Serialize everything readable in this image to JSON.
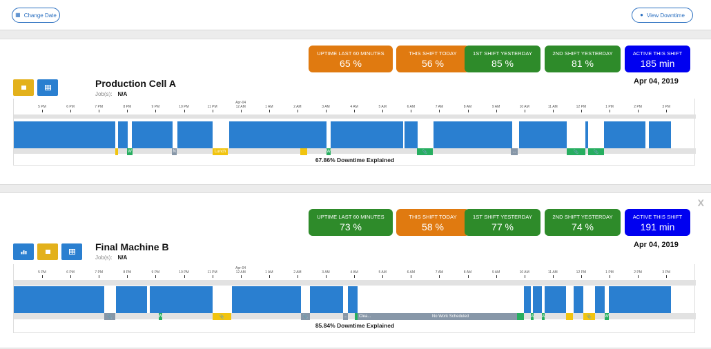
{
  "topbar": {
    "change_date_label": "Change Date",
    "view_downtime_label": "View Downtime"
  },
  "colors": {
    "orange": "#e07a10",
    "green": "#2e8b2a",
    "active_blue": "#0000f0",
    "uptime_blue": "#2a7fd0",
    "yellow": "#e3b11b",
    "marker_green": "#27ae60",
    "marker_gray": "#8797a8"
  },
  "axis": {
    "hours": [
      "5 PM",
      "6 PM",
      "7 PM",
      "8 PM",
      "9 PM",
      "10 PM",
      "11 PM",
      "12 AM",
      "1 AM",
      "2 AM",
      "3 AM",
      "4 AM",
      "5 AM",
      "6 AM",
      "7 AM",
      "8 AM",
      "9 AM",
      "10 AM",
      "11 AM",
      "12 PM",
      "1 PM",
      "2 PM",
      "3 PM"
    ],
    "midnight_date": "Apr-04"
  },
  "machines": [
    {
      "title": "Production Cell A",
      "jobs_label": "Job(s):",
      "jobs_value": "N/A",
      "date": "Apr 04, 2019",
      "stats": [
        {
          "label": "UPTIME LAST 60 MINUTES",
          "value": "65 %",
          "color": "orange"
        },
        {
          "label": "THIS SHIFT TODAY",
          "value": "56 %",
          "color": "orange"
        },
        {
          "label": "1ST SHIFT YESTERDAY",
          "value": "85 %",
          "color": "green"
        },
        {
          "label": "2ND SHIFT YESTERDAY",
          "value": "81 %",
          "color": "green"
        },
        {
          "label": "ACTIVE THIS SHIFT",
          "value": "185 min",
          "color": "active"
        }
      ],
      "downtime_explained": "67.86% Downtime Explained",
      "markers": [
        {
          "text": "W"
        },
        {
          "text": "N"
        },
        {
          "text": "Lunch"
        },
        {
          "text": "W"
        },
        {
          "text": "..."
        }
      ]
    },
    {
      "title": "Final Machine B",
      "jobs_label": "Job(s):",
      "jobs_value": "N/A",
      "date": "Apr 04, 2019",
      "stats": [
        {
          "label": "UPTIME LAST 60 MINUTES",
          "value": "73 %",
          "color": "green"
        },
        {
          "label": "THIS SHIFT TODAY",
          "value": "58 %",
          "color": "orange"
        },
        {
          "label": "1ST SHIFT YESTERDAY",
          "value": "77 %",
          "color": "green"
        },
        {
          "label": "2ND SHIFT YESTERDAY",
          "value": "74 %",
          "color": "green"
        },
        {
          "label": "ACTIVE THIS SHIFT",
          "value": "191 min",
          "color": "active"
        }
      ],
      "downtime_explained": "85.84% Downtime Explained",
      "close_label": "X",
      "markers": [
        {
          "text": "W"
        },
        {
          "text": "..."
        },
        {
          "text": "Clea..."
        },
        {
          "text": "No Work Scheduled"
        },
        {
          "text": "A"
        },
        {
          "text": "A"
        },
        {
          "text": "W"
        }
      ]
    }
  ]
}
